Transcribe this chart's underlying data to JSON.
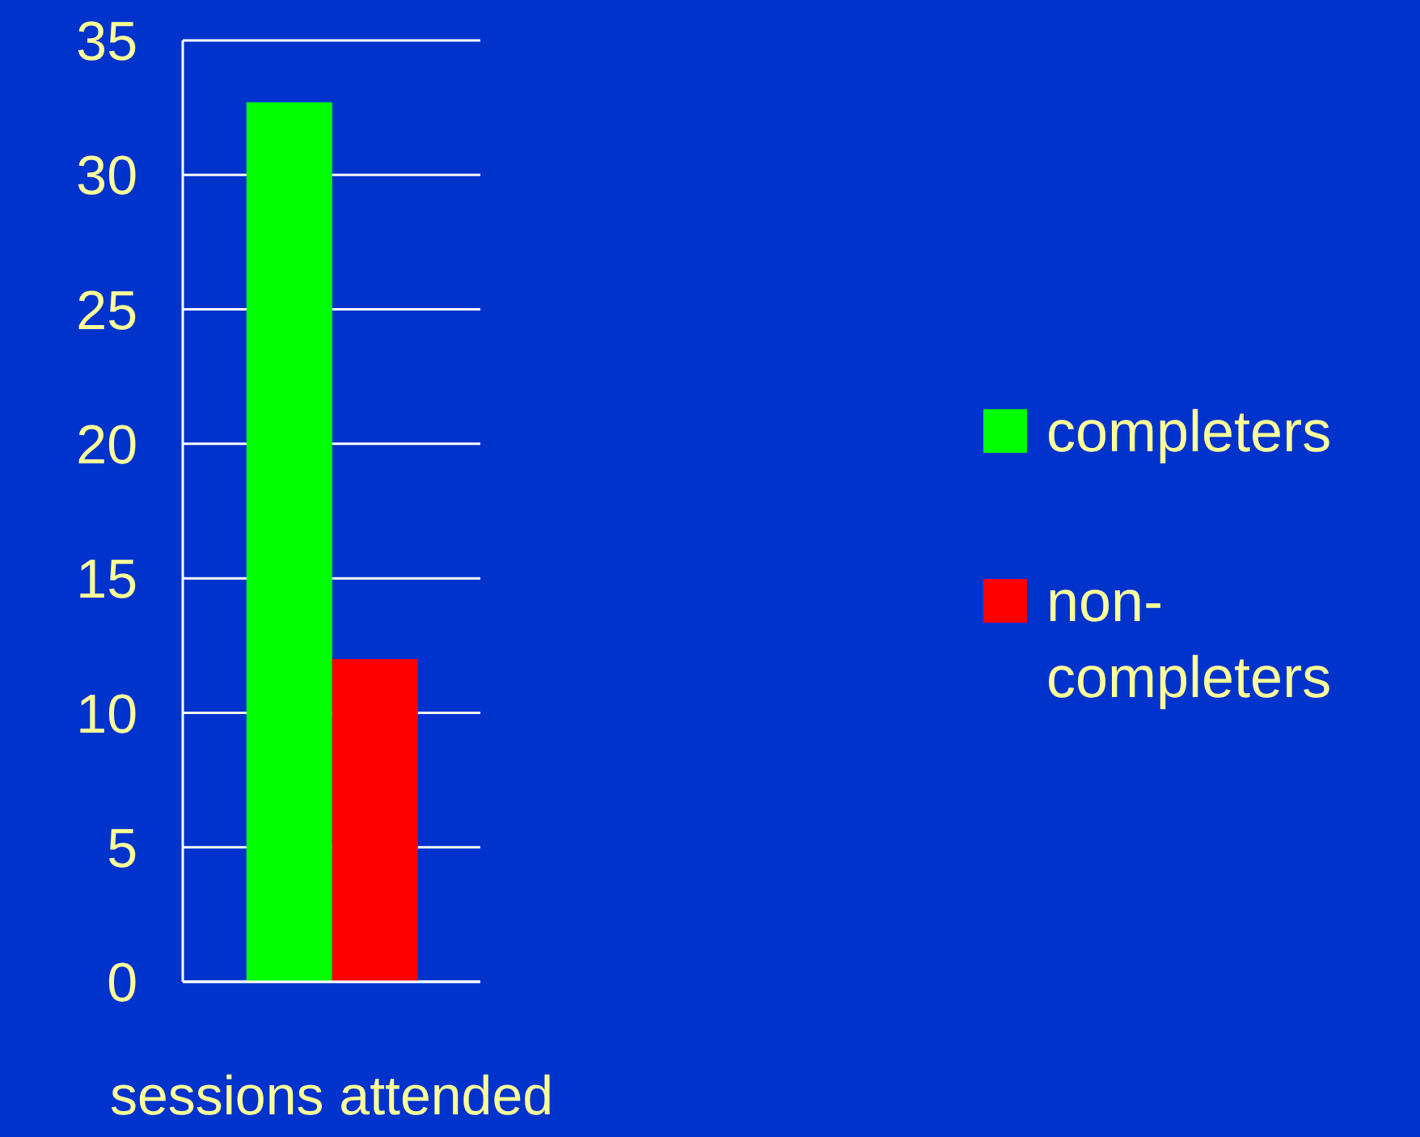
{
  "chart_data": {
    "type": "bar",
    "categories": [
      "sessions attended"
    ],
    "series": [
      {
        "name": "completers",
        "color": "#00ff00",
        "values": [
          32.7
        ]
      },
      {
        "name": "non-completers",
        "color": "#ff0000",
        "values": [
          12
        ]
      }
    ],
    "ylim": [
      0,
      35
    ],
    "yticks": [
      0,
      5,
      10,
      15,
      20,
      25,
      30,
      35
    ],
    "grid": "y",
    "legend": "right"
  }
}
